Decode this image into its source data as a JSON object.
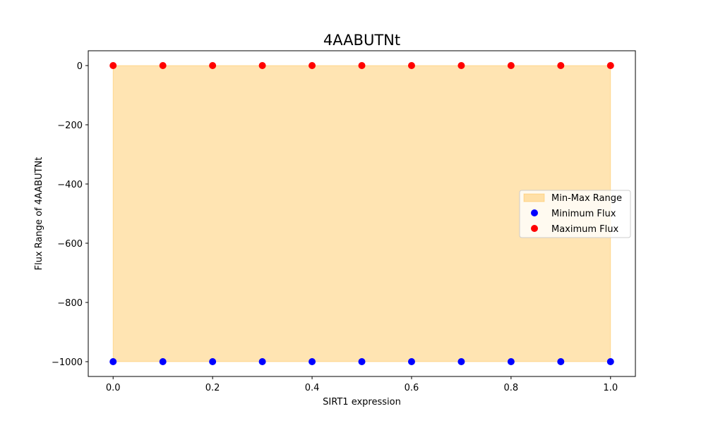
{
  "chart_data": {
    "type": "scatter",
    "title": "4AABUTNt",
    "xlabel": "SIRT1 expression",
    "ylabel": "Flux Range of 4AABUTNt",
    "xlim": [
      -0.05,
      1.05
    ],
    "ylim": [
      -1050,
      50
    ],
    "xticks": [
      0.0,
      0.2,
      0.4,
      0.6,
      0.8,
      1.0
    ],
    "xtick_labels": [
      "0.0",
      "0.2",
      "0.4",
      "0.6",
      "0.8",
      "1.0"
    ],
    "yticks": [
      0,
      -200,
      -400,
      -600,
      -800,
      -1000
    ],
    "ytick_labels": [
      "0",
      "−200",
      "−400",
      "−600",
      "−800",
      "−1000"
    ],
    "x": [
      0.0,
      0.1,
      0.2,
      0.3,
      0.4,
      0.5,
      0.6,
      0.7,
      0.8,
      0.9,
      1.0
    ],
    "series": [
      {
        "name": "Minimum Flux",
        "color": "#0000ff",
        "values": [
          -1000,
          -1000,
          -1000,
          -1000,
          -1000,
          -1000,
          -1000,
          -1000,
          -1000,
          -1000,
          -1000
        ]
      },
      {
        "name": "Maximum Flux",
        "color": "#ff0000",
        "values": [
          0,
          0,
          0,
          0,
          0,
          0,
          0,
          0,
          0,
          0,
          0
        ]
      }
    ],
    "range_band": {
      "name": "Min-Max Range",
      "color": "#ffa500",
      "opacity": 0.3
    },
    "legend_position": "center-right",
    "grid": false
  }
}
